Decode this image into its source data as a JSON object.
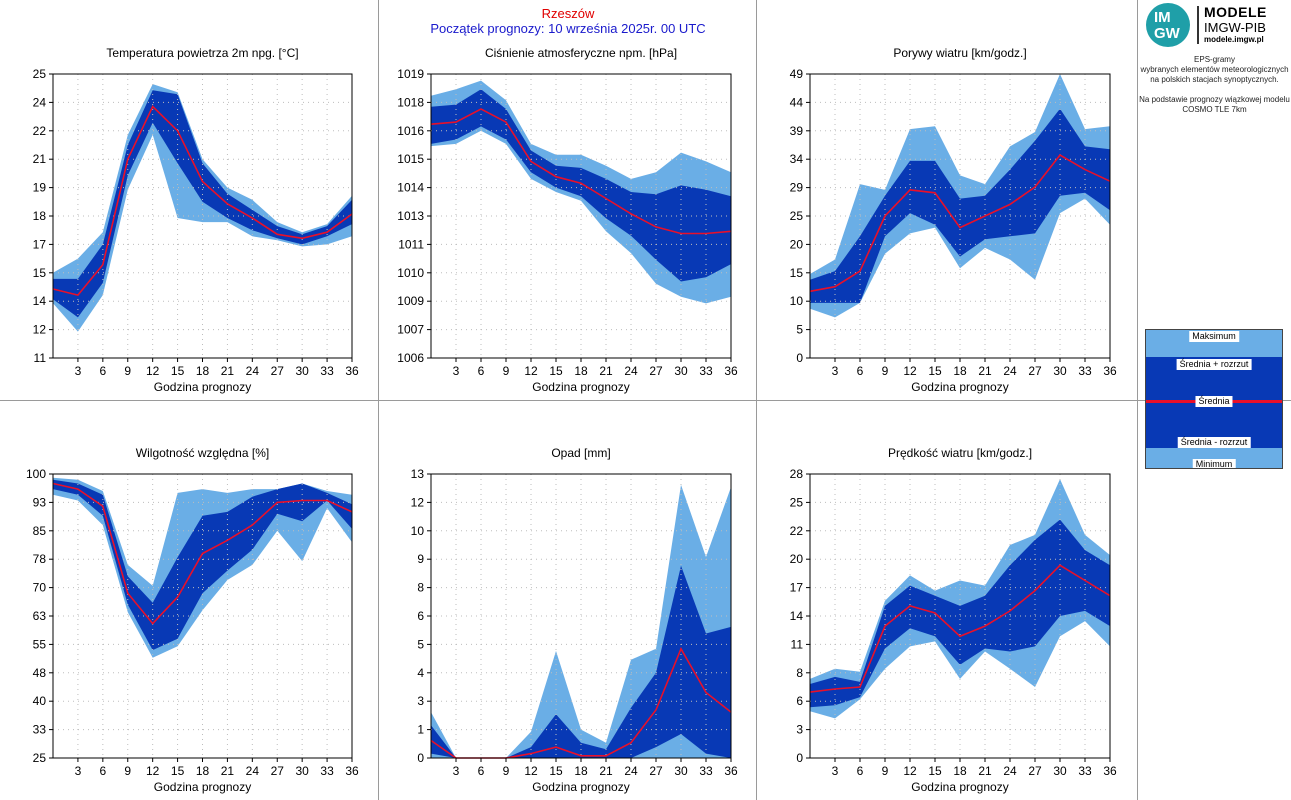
{
  "header": {
    "station": "Rzeszów",
    "forecast_start": "Początek prognozy: 10 września 2025r. 00 UTC"
  },
  "logo": {
    "mark_top": "IM",
    "mark_bottom": "GW",
    "line1": "MODELE",
    "line2": "IMGW-PIB",
    "line3": "modele.imgw.pl"
  },
  "description": {
    "line1": "EPS-gramy",
    "line2": "wybranych elementów meteorologicznych",
    "line3": "na polskich stacjach  synoptycznych.",
    "line4": "Na podstawie prognozy wiązkowej modelu",
    "line5": "COSMO TLE 7km"
  },
  "legend": {
    "max": "Maksimum",
    "mean_plus": "Średnia + rozrzut",
    "mean": "Średnia",
    "mean_minus": "Średnia - rozrzut",
    "min": "Minimum"
  },
  "colors": {
    "outer_band": "#6aaee6",
    "inner_band": "#0839b5",
    "mean_line": "#e8102a",
    "station_text": "#e00000",
    "forecast_text": "#1a1acc"
  },
  "chart_data": [
    {
      "type": "area",
      "title": "Temperatura powietrza 2m npg. [°C]",
      "xlabel": "Godzina prognozy",
      "ylabel": "",
      "x": [
        0,
        3,
        6,
        9,
        12,
        15,
        18,
        21,
        24,
        27,
        30,
        33,
        36
      ],
      "x_ticks": [
        "3",
        "6",
        "9",
        "12",
        "15",
        "18",
        "21",
        "24",
        "27",
        "30",
        "33",
        "36"
      ],
      "ylim": [
        11,
        25
      ],
      "y_ticks": [
        "11",
        "12",
        "14",
        "15",
        "17",
        "18",
        "19",
        "21",
        "22",
        "24",
        "25"
      ],
      "series": [
        {
          "name": "Maksimum",
          "values": [
            15.2,
            15.9,
            17.2,
            22.0,
            24.5,
            24.1,
            20.8,
            19.4,
            18.8,
            17.7,
            17.2,
            17.6,
            19.0
          ]
        },
        {
          "name": "Średnia + rozrzut",
          "values": [
            14.9,
            14.9,
            16.6,
            21.5,
            24.2,
            24.0,
            20.6,
            19.1,
            18.3,
            17.5,
            17.1,
            17.5,
            18.8
          ]
        },
        {
          "name": "Średnia",
          "values": [
            14.4,
            14.1,
            15.6,
            20.8,
            23.4,
            22.2,
            19.7,
            18.6,
            17.9,
            17.1,
            16.9,
            17.2,
            18.1
          ]
        },
        {
          "name": "Średnia - rozrzut",
          "values": [
            13.9,
            13.0,
            14.7,
            20.0,
            22.6,
            20.6,
            18.7,
            17.9,
            17.3,
            16.9,
            16.6,
            17.0,
            17.6
          ]
        },
        {
          "name": "Minimum",
          "values": [
            13.7,
            12.3,
            14.1,
            19.3,
            22.0,
            17.9,
            17.7,
            17.7,
            17.0,
            16.8,
            16.5,
            16.6,
            17.0
          ]
        }
      ]
    },
    {
      "type": "area",
      "title": "Ciśnienie atmosferyczne npm. [hPa]",
      "xlabel": "Godzina prognozy",
      "ylabel": "",
      "x": [
        0,
        3,
        6,
        9,
        12,
        15,
        18,
        21,
        24,
        27,
        30,
        33,
        36
      ],
      "x_ticks": [
        "3",
        "6",
        "9",
        "12",
        "15",
        "18",
        "21",
        "24",
        "27",
        "30",
        "33",
        "36"
      ],
      "ylim": [
        1006,
        1019
      ],
      "y_ticks": [
        "1006",
        "1007",
        "1009",
        "1010",
        "1011",
        "1013",
        "1014",
        "1015",
        "1016",
        "1018",
        "1019"
      ],
      "series": [
        {
          "name": "Maksimum",
          "values": [
            1018.0,
            1018.3,
            1018.7,
            1017.8,
            1015.8,
            1015.3,
            1015.3,
            1014.8,
            1014.2,
            1014.5,
            1015.4,
            1015.0,
            1014.5
          ]
        },
        {
          "name": "Średnia + rozrzut",
          "values": [
            1017.5,
            1017.6,
            1018.3,
            1017.4,
            1015.5,
            1014.8,
            1014.7,
            1014.2,
            1013.6,
            1013.5,
            1013.9,
            1013.7,
            1013.4
          ]
        },
        {
          "name": "Średnia",
          "values": [
            1016.7,
            1016.8,
            1017.4,
            1016.8,
            1015.0,
            1014.3,
            1014.0,
            1013.3,
            1012.6,
            1012.0,
            1011.7,
            1011.7,
            1011.8
          ]
        },
        {
          "name": "Średnia - rozrzut",
          "values": [
            1015.8,
            1016.0,
            1016.6,
            1016.0,
            1014.5,
            1013.8,
            1013.4,
            1012.4,
            1011.6,
            1010.5,
            1009.5,
            1009.7,
            1010.3
          ]
        },
        {
          "name": "Minimum",
          "values": [
            1015.7,
            1015.8,
            1016.4,
            1015.8,
            1014.2,
            1013.6,
            1013.2,
            1011.8,
            1010.8,
            1009.4,
            1008.8,
            1008.5,
            1008.8
          ]
        }
      ]
    },
    {
      "type": "area",
      "title": "Porywy wiatru [km/godz.]",
      "xlabel": "Godzina prognozy",
      "ylabel": "",
      "x": [
        0,
        3,
        6,
        9,
        12,
        15,
        18,
        21,
        24,
        27,
        30,
        33,
        36
      ],
      "x_ticks": [
        "3",
        "6",
        "9",
        "12",
        "15",
        "18",
        "21",
        "24",
        "27",
        "30",
        "33",
        "36"
      ],
      "ylim": [
        0,
        49
      ],
      "y_ticks": [
        "0",
        "5",
        "10",
        "15",
        "20",
        "25",
        "29",
        "34",
        "39",
        "44",
        "49"
      ],
      "series": [
        {
          "name": "Maksimum",
          "values": [
            14.5,
            17.0,
            30.0,
            29.0,
            39.5,
            40.0,
            31.5,
            30.0,
            36.5,
            39.0,
            49.0,
            39.5,
            40.0
          ]
        },
        {
          "name": "Średnia + rozrzut",
          "values": [
            13.5,
            15.0,
            21.0,
            28.0,
            34.0,
            34.0,
            27.5,
            28.0,
            32.5,
            37.5,
            43.0,
            36.5,
            36.0
          ]
        },
        {
          "name": "Średnia",
          "values": [
            11.5,
            12.3,
            15.0,
            24.5,
            29.0,
            28.5,
            22.5,
            24.5,
            26.5,
            29.5,
            35.0,
            32.5,
            30.5
          ]
        },
        {
          "name": "Średnia - rozrzut",
          "values": [
            9.5,
            9.5,
            9.5,
            21.0,
            25.0,
            23.0,
            17.5,
            20.5,
            21.0,
            21.5,
            28.0,
            28.5,
            25.5
          ]
        },
        {
          "name": "Minimum",
          "values": [
            8.5,
            7.0,
            9.5,
            18.0,
            21.5,
            22.5,
            15.5,
            19.0,
            17.0,
            13.5,
            25.0,
            27.5,
            23.0
          ]
        }
      ]
    },
    {
      "type": "area",
      "title": "Wilgotność względna [%]",
      "xlabel": "Godzina prognozy",
      "ylabel": "",
      "x": [
        0,
        3,
        6,
        9,
        12,
        15,
        18,
        21,
        24,
        27,
        30,
        33,
        36
      ],
      "x_ticks": [
        "3",
        "6",
        "9",
        "12",
        "15",
        "18",
        "21",
        "24",
        "27",
        "30",
        "33",
        "36"
      ],
      "ylim": [
        25,
        100
      ],
      "y_ticks": [
        "25",
        "33",
        "40",
        "48",
        "55",
        "63",
        "70",
        "78",
        "85",
        "93",
        "100"
      ],
      "series": [
        {
          "name": "Maksimum",
          "values": [
            99.0,
            98.5,
            95.5,
            76.0,
            70.5,
            95.0,
            96.0,
            95.0,
            96.0,
            96.0,
            97.5,
            95.5,
            94.5
          ]
        },
        {
          "name": "Średnia + rozrzut",
          "values": [
            98.5,
            97.5,
            94.5,
            73.0,
            66.0,
            78.0,
            89.0,
            90.0,
            94.0,
            96.0,
            97.5,
            95.0,
            92.0
          ]
        },
        {
          "name": "Średnia",
          "values": [
            97.5,
            96.0,
            91.5,
            68.5,
            60.5,
            67.5,
            79.0,
            82.5,
            86.5,
            92.5,
            93.0,
            93.0,
            90.0
          ]
        },
        {
          "name": "Średnia - rozrzut",
          "values": [
            96.0,
            94.5,
            89.0,
            65.5,
            53.5,
            56.5,
            68.5,
            74.5,
            80.0,
            89.5,
            87.5,
            93.0,
            85.5
          ]
        },
        {
          "name": "Minimum",
          "values": [
            94.5,
            93.0,
            86.5,
            63.5,
            51.5,
            54.5,
            64.0,
            72.0,
            76.0,
            85.0,
            77.0,
            91.0,
            82.0
          ]
        }
      ]
    },
    {
      "type": "area",
      "title": "Opad [mm]",
      "xlabel": "Godzina prognozy",
      "ylabel": "",
      "x": [
        0,
        3,
        6,
        9,
        12,
        15,
        18,
        21,
        24,
        27,
        30,
        33,
        36
      ],
      "x_ticks": [
        "3",
        "6",
        "9",
        "12",
        "15",
        "18",
        "21",
        "24",
        "27",
        "30",
        "33",
        "36"
      ],
      "ylim": [
        0,
        13
      ],
      "y_ticks": [
        "0",
        "1",
        "3",
        "4",
        "5",
        "6",
        "8",
        "9",
        "10",
        "12",
        "13"
      ],
      "series": [
        {
          "name": "Maksimum",
          "values": [
            2.1,
            0.0,
            0.0,
            0.0,
            1.2,
            4.9,
            1.3,
            0.7,
            4.5,
            5.0,
            12.5,
            9.2,
            12.4
          ]
        },
        {
          "name": "Średnia + rozrzut",
          "values": [
            1.5,
            0.0,
            0.0,
            0.0,
            0.5,
            2.0,
            0.7,
            0.4,
            2.3,
            3.9,
            8.8,
            5.7,
            6.0
          ]
        },
        {
          "name": "Średnia",
          "values": [
            0.8,
            0.0,
            0.0,
            0.0,
            0.2,
            0.5,
            0.1,
            0.1,
            0.7,
            2.2,
            5.0,
            3.0,
            2.1
          ]
        },
        {
          "name": "Średnia - rozrzut",
          "values": [
            0.2,
            0.0,
            0.0,
            0.0,
            0.0,
            0.0,
            0.0,
            0.0,
            0.0,
            0.5,
            1.1,
            0.2,
            0.0
          ]
        },
        {
          "name": "Minimum",
          "values": [
            0.0,
            0.0,
            0.0,
            0.0,
            0.0,
            0.0,
            0.0,
            0.0,
            0.0,
            0.0,
            0.0,
            0.0,
            0.0
          ]
        }
      ]
    },
    {
      "type": "area",
      "title": "Prędkość wiatru [km/godz.]",
      "xlabel": "Godzina prognozy",
      "ylabel": "",
      "x": [
        0,
        3,
        6,
        9,
        12,
        15,
        18,
        21,
        24,
        27,
        30,
        33,
        36
      ],
      "x_ticks": [
        "3",
        "6",
        "9",
        "12",
        "15",
        "18",
        "21",
        "24",
        "27",
        "30",
        "33",
        "36"
      ],
      "ylim": [
        0,
        28
      ],
      "y_ticks": [
        "0",
        "3",
        "6",
        "8",
        "11",
        "14",
        "17",
        "20",
        "22",
        "25",
        "28"
      ],
      "series": [
        {
          "name": "Maksimum",
          "values": [
            7.8,
            8.8,
            8.5,
            15.5,
            18.0,
            16.5,
            17.5,
            17.0,
            21.0,
            22.0,
            27.5,
            22.0,
            20.0
          ]
        },
        {
          "name": "Średnia + rozrzut",
          "values": [
            7.3,
            8.0,
            7.5,
            15.0,
            17.0,
            16.0,
            15.0,
            16.0,
            19.0,
            21.5,
            23.5,
            20.5,
            19.0
          ]
        },
        {
          "name": "Średnia",
          "values": [
            6.5,
            6.8,
            7.0,
            13.0,
            15.0,
            14.3,
            12.0,
            13.0,
            14.5,
            16.5,
            19.0,
            17.5,
            16.0
          ]
        },
        {
          "name": "Średnia - rozrzut",
          "values": [
            5.0,
            5.2,
            6.0,
            10.8,
            12.8,
            12.0,
            9.2,
            10.8,
            10.5,
            11.0,
            14.0,
            14.5,
            13.0
          ]
        },
        {
          "name": "Minimum",
          "values": [
            4.6,
            3.9,
            5.8,
            8.8,
            11.0,
            11.5,
            7.8,
            10.5,
            8.8,
            7.0,
            12.0,
            13.5,
            11.0
          ]
        }
      ]
    }
  ]
}
